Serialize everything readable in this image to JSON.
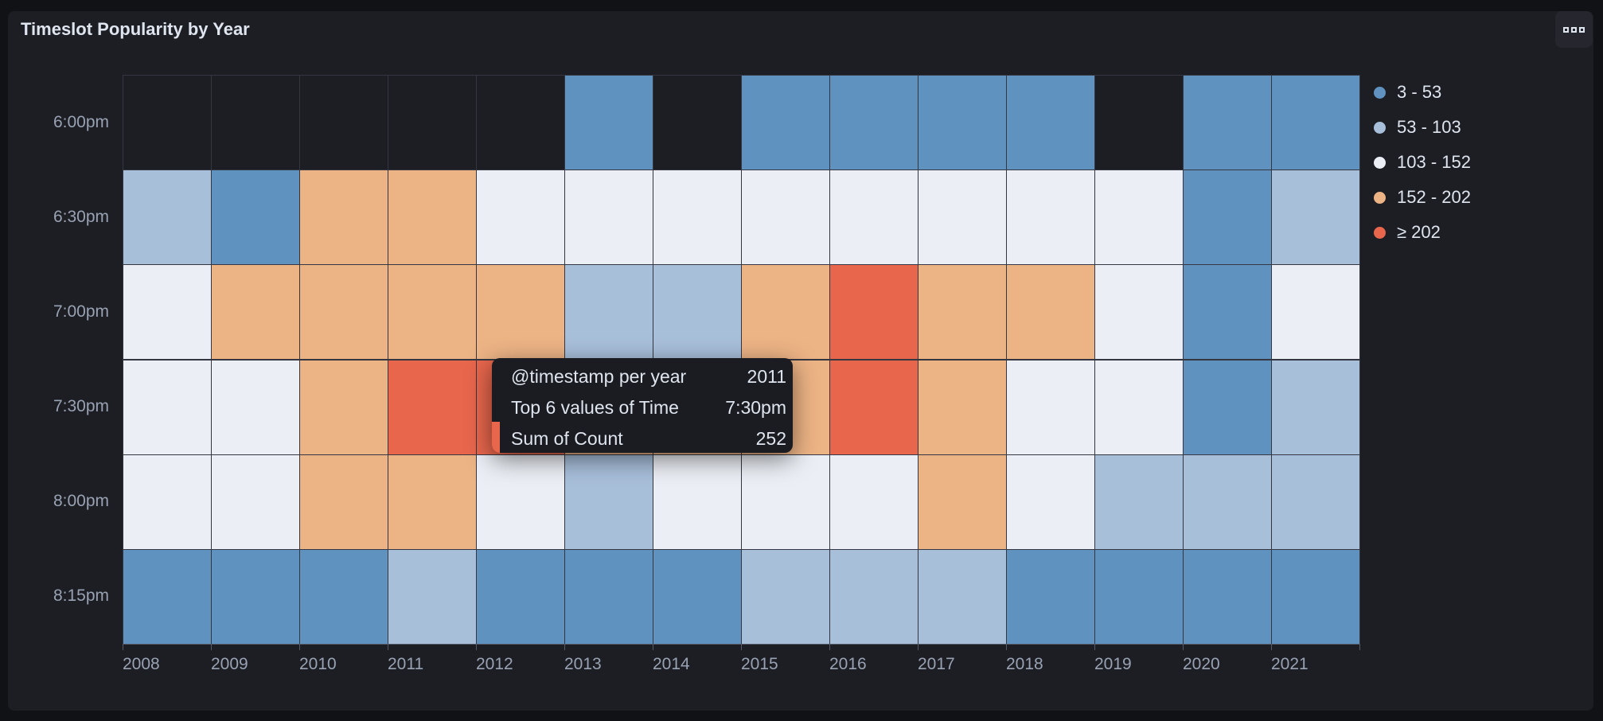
{
  "panel": {
    "title": "Timeslot Popularity by Year",
    "menu_icon": "ellipsis-icon"
  },
  "tooltip": {
    "rows": [
      {
        "label": "@timestamp per year",
        "value": "2011"
      },
      {
        "label": "Top 6 values of Time",
        "value": "7:30pm"
      },
      {
        "label": "Sum of Count",
        "value": "252"
      }
    ],
    "color": "#E7664C"
  },
  "chart_data": {
    "type": "heatmap",
    "title": "Timeslot Popularity by Year",
    "x": [
      "2008",
      "2009",
      "2010",
      "2011",
      "2012",
      "2013",
      "2014",
      "2015",
      "2016",
      "2017",
      "2018",
      "2019",
      "2020",
      "2021"
    ],
    "y": [
      "6:00pm",
      "6:30pm",
      "7:00pm",
      "7:30pm",
      "8:00pm",
      "8:15pm"
    ],
    "legend_position": "right",
    "legend": [
      {
        "label": "3 - 53",
        "color": "#6092C0"
      },
      {
        "label": "53 - 103",
        "color": "#A8BFDA"
      },
      {
        "label": "103 - 152",
        "color": "#EBEFF5"
      },
      {
        "label": "152 - 202",
        "color": "#ECB385"
      },
      {
        "label": "≥ 202",
        "color": "#E7664C"
      }
    ],
    "empty_color": "#1D1E24",
    "bin_index_grid": [
      [
        null,
        null,
        null,
        null,
        null,
        0,
        null,
        0,
        0,
        0,
        0,
        null,
        0,
        0
      ],
      [
        1,
        0,
        3,
        3,
        2,
        2,
        2,
        2,
        2,
        2,
        2,
        2,
        0,
        1
      ],
      [
        2,
        3,
        3,
        3,
        3,
        1,
        1,
        3,
        4,
        3,
        3,
        2,
        0,
        2
      ],
      [
        2,
        2,
        3,
        4,
        4,
        3,
        3,
        3,
        4,
        3,
        2,
        2,
        0,
        1
      ],
      [
        2,
        2,
        3,
        3,
        2,
        1,
        2,
        2,
        2,
        3,
        2,
        1,
        1,
        1
      ],
      [
        0,
        0,
        0,
        1,
        0,
        0,
        0,
        1,
        1,
        1,
        0,
        0,
        0,
        0
      ]
    ]
  }
}
